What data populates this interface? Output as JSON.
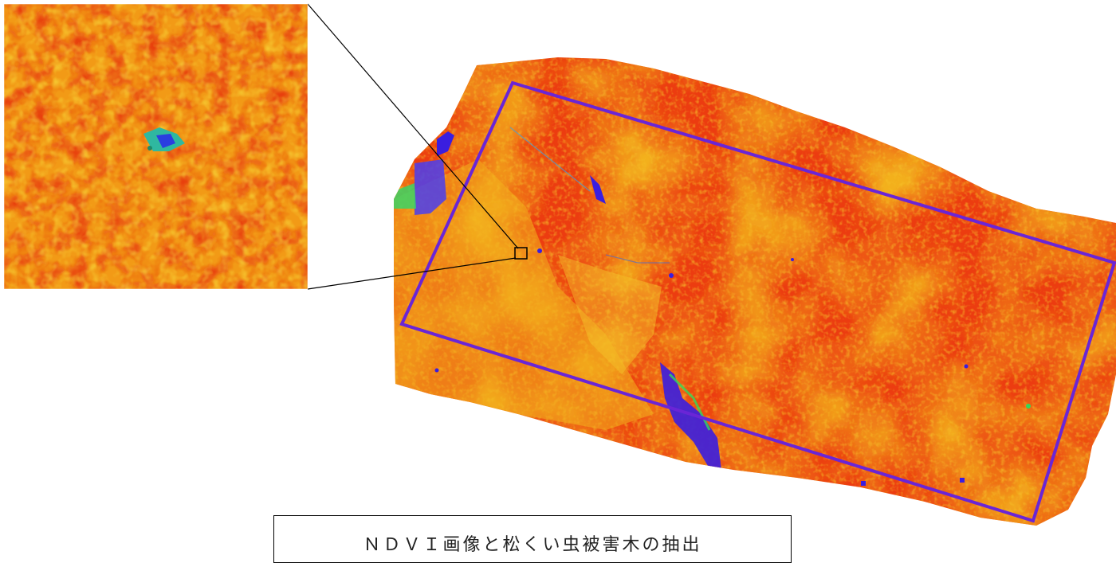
{
  "caption": {
    "text": "ＮＤＶＩ画像と松くい虫被害木の抽出"
  },
  "colors": {
    "background": "#ffffff",
    "high_ndvi_red": "#e8300e",
    "mid_orange": "#f07a12",
    "low_yellow": "#f3bd1c",
    "green": "#34d85a",
    "water_blue": "#3a1ee0",
    "selection_rectangle": "#6a25d6",
    "leader_lines": "#000000"
  },
  "layers": [
    {
      "name": "ndvi-raster",
      "type": "raster"
    },
    {
      "name": "inset-zoom",
      "type": "magnified-view"
    },
    {
      "name": "study-area-rectangle",
      "type": "outline"
    }
  ]
}
